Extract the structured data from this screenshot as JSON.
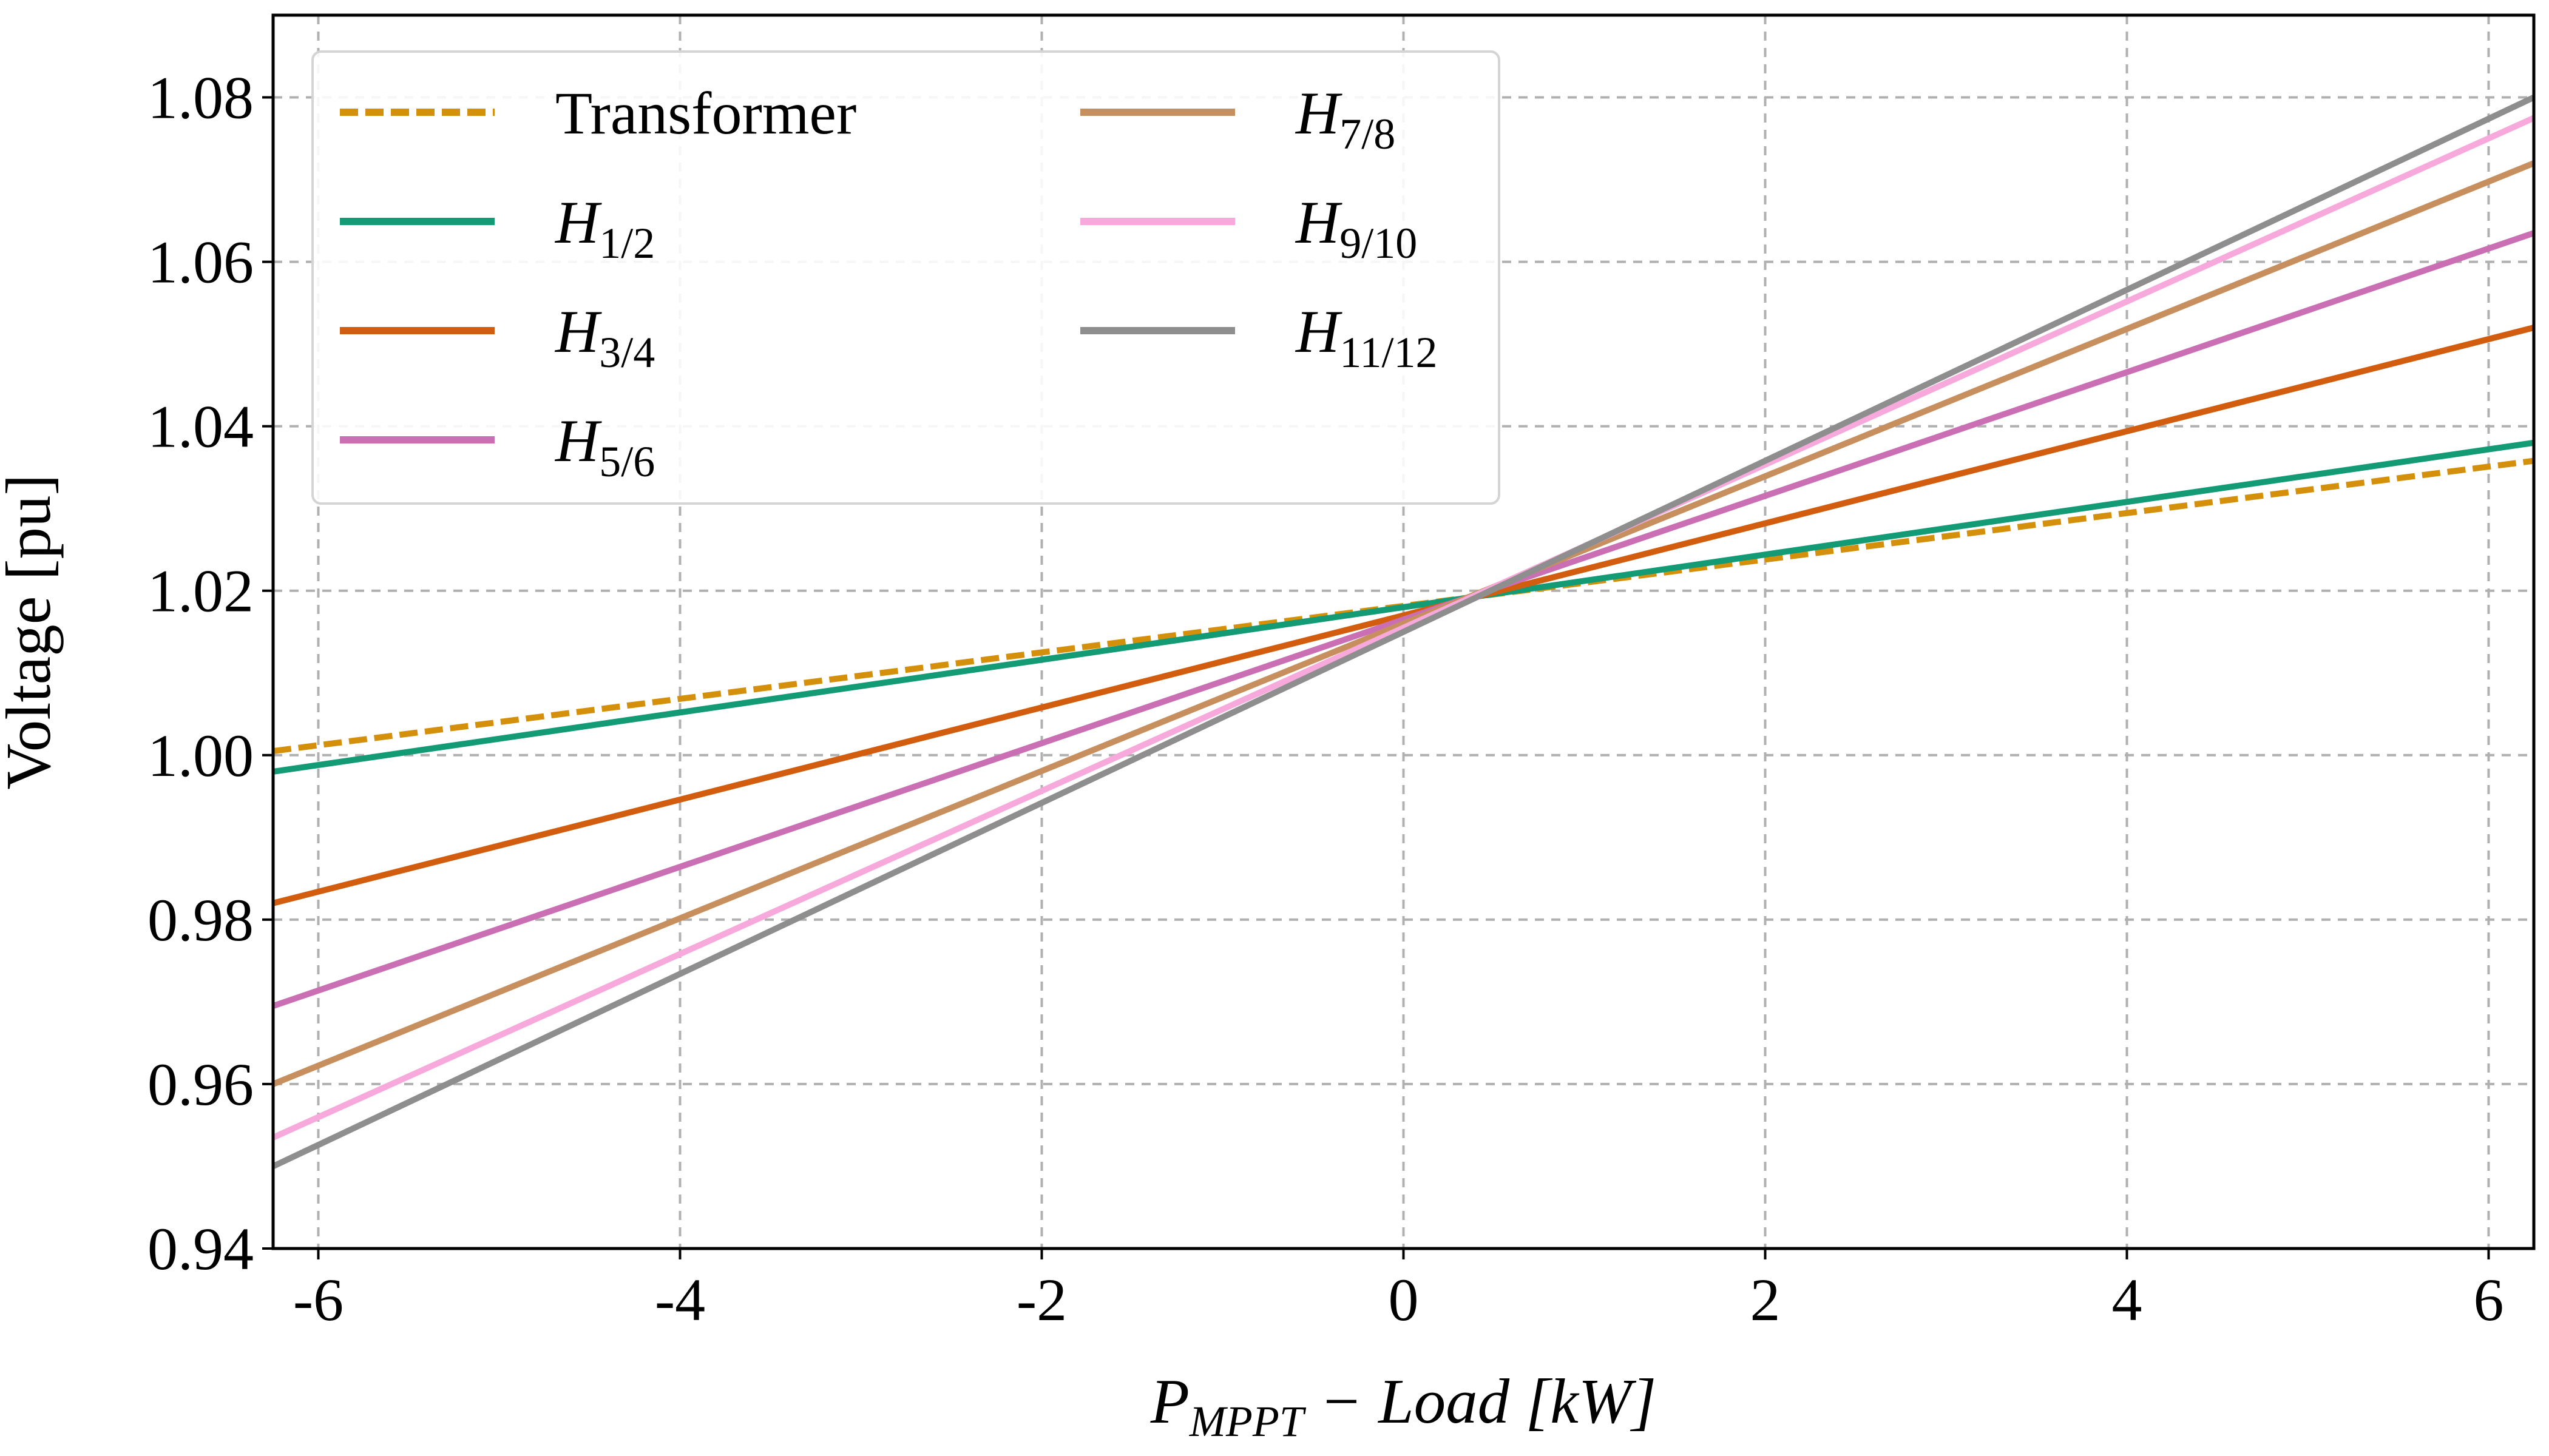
{
  "chart_data": {
    "type": "line",
    "xlabel": {
      "base": "P",
      "sub": "MPPT",
      "rest": " − Load [kW]"
    },
    "ylabel": "Voltage [pu]",
    "xlim": [
      -6.25,
      6.25
    ],
    "ylim": [
      0.94,
      1.09
    ],
    "xticks": [
      -6,
      -4,
      -2,
      0,
      2,
      4,
      6
    ],
    "xtick_labels": [
      "-6",
      "-4",
      "-2",
      "0",
      "2",
      "4",
      "6"
    ],
    "yticks": [
      0.94,
      0.96,
      0.98,
      1.0,
      1.02,
      1.04,
      1.06,
      1.08
    ],
    "ytick_labels": [
      "0.94",
      "0.96",
      "0.98",
      "1.00",
      "1.02",
      "1.04",
      "1.06",
      "1.08"
    ],
    "grid": true,
    "legend_position": "top-left",
    "legend_columns": 2,
    "x": [
      -6.25,
      6.25
    ],
    "series": [
      {
        "name": "Transformer",
        "legend_base": "Transformer",
        "legend_sub": "",
        "italic": false,
        "color": "#d4900a",
        "dashed": true,
        "values": [
          1.0005,
          1.0358
        ]
      },
      {
        "name": "H1/2",
        "legend_base": "H",
        "legend_sub": "1/2",
        "italic": true,
        "color": "#129b74",
        "dashed": false,
        "values": [
          0.998,
          1.038
        ]
      },
      {
        "name": "H3/4",
        "legend_base": "H",
        "legend_sub": "3/4",
        "italic": true,
        "color": "#d35d0e",
        "dashed": false,
        "values": [
          0.982,
          1.052
        ]
      },
      {
        "name": "H5/6",
        "legend_base": "H",
        "legend_sub": "5/6",
        "italic": true,
        "color": "#cb6fb4",
        "dashed": false,
        "values": [
          0.9695,
          1.0635
        ]
      },
      {
        "name": "H7/8",
        "legend_base": "H",
        "legend_sub": "7/8",
        "italic": true,
        "color": "#c78f5e",
        "dashed": false,
        "values": [
          0.96,
          1.072
        ]
      },
      {
        "name": "H9/10",
        "legend_base": "H",
        "legend_sub": "9/10",
        "italic": true,
        "color": "#f7a9dc",
        "dashed": false,
        "values": [
          0.9535,
          1.0775
        ]
      },
      {
        "name": "H11/12",
        "legend_base": "H",
        "legend_sub": "11/12",
        "italic": true,
        "color": "#8e8e8e",
        "dashed": false,
        "values": [
          0.95,
          1.08
        ]
      }
    ]
  }
}
